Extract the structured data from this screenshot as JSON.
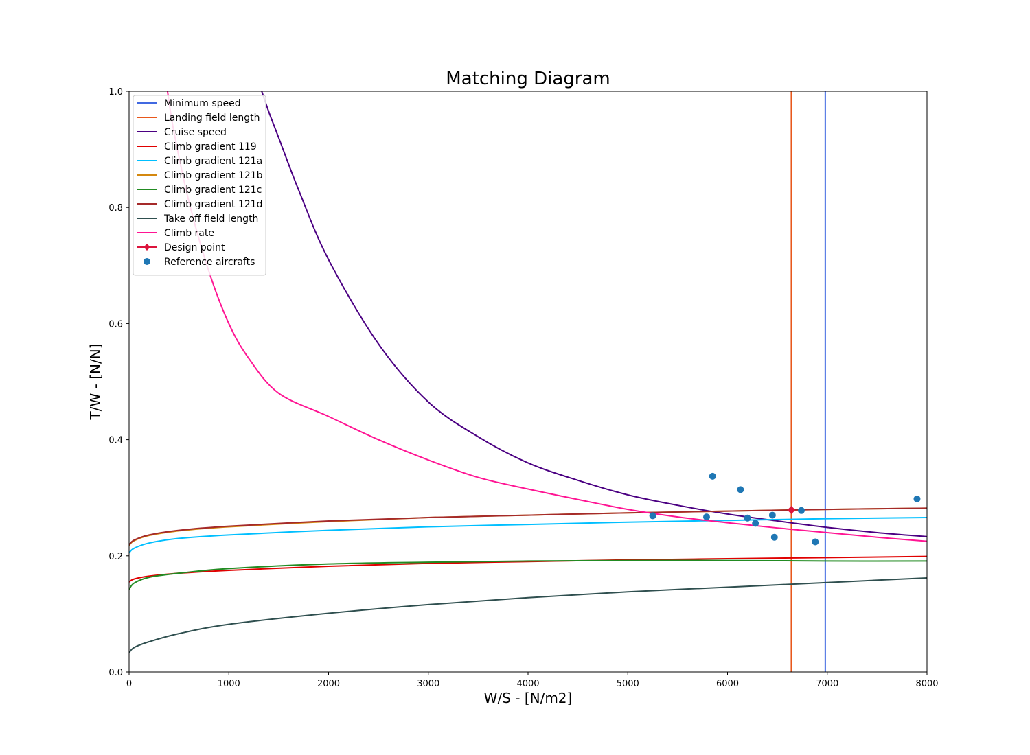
{
  "chart_data": {
    "type": "line",
    "title": "Matching Diagram",
    "xlabel": "W/S - [N/m2]",
    "ylabel": "T/W - [N/N]",
    "xlim": [
      0,
      8000
    ],
    "ylim": [
      0,
      1.0
    ],
    "xticks": [
      "0",
      "1000",
      "2000",
      "3000",
      "4000",
      "5000",
      "6000",
      "7000",
      "8000"
    ],
    "yticks": [
      "0.0",
      "0.2",
      "0.4",
      "0.6",
      "0.8",
      "1.0"
    ],
    "xtick_values": [
      0,
      1000,
      2000,
      3000,
      4000,
      5000,
      6000,
      7000,
      8000
    ],
    "ytick_values": [
      0,
      0.2,
      0.4,
      0.6,
      0.8,
      1.0
    ],
    "legend_position": "upper-left",
    "grid": false,
    "series": [
      {
        "name": "Minimum speed",
        "color": "#4169e1",
        "kind": "vline",
        "x": 6980
      },
      {
        "name": "Landing field length",
        "color": "#e8581c",
        "kind": "vline",
        "x": 6640
      },
      {
        "name": "Cruise speed",
        "color": "#4b0082",
        "kind": "curve",
        "x": [
          1330,
          1400,
          1500,
          1700,
          2000,
          2500,
          3000,
          3500,
          4000,
          4500,
          5000,
          5500,
          6000,
          6500,
          7000,
          7500,
          8000
        ],
        "y": [
          1.0,
          0.965,
          0.92,
          0.83,
          0.71,
          0.565,
          0.465,
          0.405,
          0.36,
          0.33,
          0.305,
          0.287,
          0.272,
          0.26,
          0.249,
          0.24,
          0.233
        ]
      },
      {
        "name": "Climb gradient 119",
        "color": "#e00000",
        "kind": "curve",
        "x": [
          0,
          50,
          200,
          500,
          1000,
          2000,
          3000,
          4000,
          5000,
          6000,
          7000,
          8000
        ],
        "y": [
          0.155,
          0.16,
          0.165,
          0.17,
          0.175,
          0.182,
          0.187,
          0.19,
          0.193,
          0.195,
          0.197,
          0.199
        ]
      },
      {
        "name": "Climb gradient 121a",
        "color": "#00bfff",
        "kind": "curve",
        "x": [
          0,
          50,
          200,
          500,
          1000,
          2000,
          3000,
          4000,
          5000,
          6000,
          7000,
          8000
        ],
        "y": [
          0.205,
          0.213,
          0.222,
          0.23,
          0.236,
          0.244,
          0.25,
          0.254,
          0.258,
          0.261,
          0.264,
          0.266
        ]
      },
      {
        "name": "Climb gradient 121b",
        "color": "#d4880f",
        "kind": "curve",
        "x": [
          0,
          50,
          200,
          500,
          1000,
          2000,
          3000,
          4000,
          5000,
          6000,
          7000,
          8000
        ],
        "y": [
          0.218,
          0.226,
          0.235,
          0.243,
          0.25,
          0.259,
          0.266,
          0.27,
          0.274,
          0.277,
          0.28,
          0.282
        ]
      },
      {
        "name": "Climb gradient 121c",
        "color": "#228b22",
        "kind": "curve",
        "x": [
          0,
          50,
          200,
          500,
          1000,
          2000,
          3000,
          4000,
          5000,
          6000,
          7000,
          8000
        ],
        "y": [
          0.142,
          0.153,
          0.163,
          0.17,
          0.178,
          0.186,
          0.189,
          0.191,
          0.192,
          0.192,
          0.191,
          0.191
        ]
      },
      {
        "name": "Climb gradient 121d",
        "color": "#a52a2a",
        "kind": "curve",
        "x": [
          0,
          50,
          200,
          500,
          1000,
          2000,
          3000,
          4000,
          5000,
          6000,
          7000,
          8000
        ],
        "y": [
          0.219,
          0.227,
          0.236,
          0.244,
          0.251,
          0.26,
          0.266,
          0.27,
          0.274,
          0.277,
          0.28,
          0.282
        ]
      },
      {
        "name": "Take off field length",
        "color": "#2f4f4f",
        "kind": "curve",
        "x": [
          0,
          50,
          200,
          500,
          1000,
          2000,
          3000,
          4000,
          5000,
          6000,
          7000,
          8000
        ],
        "y": [
          0.033,
          0.042,
          0.052,
          0.066,
          0.082,
          0.101,
          0.116,
          0.128,
          0.138,
          0.146,
          0.154,
          0.162
        ]
      },
      {
        "name": "Climb rate",
        "color": "#ff1493",
        "kind": "curve",
        "x": [
          385,
          450,
          600,
          800,
          1000,
          1200,
          1500,
          2000,
          2500,
          3000,
          3500,
          4000,
          4500,
          5000,
          5500,
          6000,
          6500,
          7000,
          7500,
          8000
        ],
        "y": [
          1.0,
          0.93,
          0.81,
          0.69,
          0.6,
          0.54,
          0.48,
          0.44,
          0.4,
          0.365,
          0.335,
          0.315,
          0.297,
          0.28,
          0.267,
          0.257,
          0.248,
          0.24,
          0.232,
          0.225
        ]
      }
    ],
    "design_point": {
      "name": "Design point",
      "color": "#dc143c",
      "x": 6640,
      "y": 0.279
    },
    "reference_aircraft": {
      "name": "Reference aircrafts",
      "color": "#1f77b4",
      "points": [
        {
          "x": 5250,
          "y": 0.269
        },
        {
          "x": 5790,
          "y": 0.267
        },
        {
          "x": 5850,
          "y": 0.337
        },
        {
          "x": 6130,
          "y": 0.314
        },
        {
          "x": 6200,
          "y": 0.265
        },
        {
          "x": 6280,
          "y": 0.256
        },
        {
          "x": 6450,
          "y": 0.27
        },
        {
          "x": 6470,
          "y": 0.232
        },
        {
          "x": 6740,
          "y": 0.278
        },
        {
          "x": 6880,
          "y": 0.224
        },
        {
          "x": 7900,
          "y": 0.298
        }
      ]
    }
  }
}
